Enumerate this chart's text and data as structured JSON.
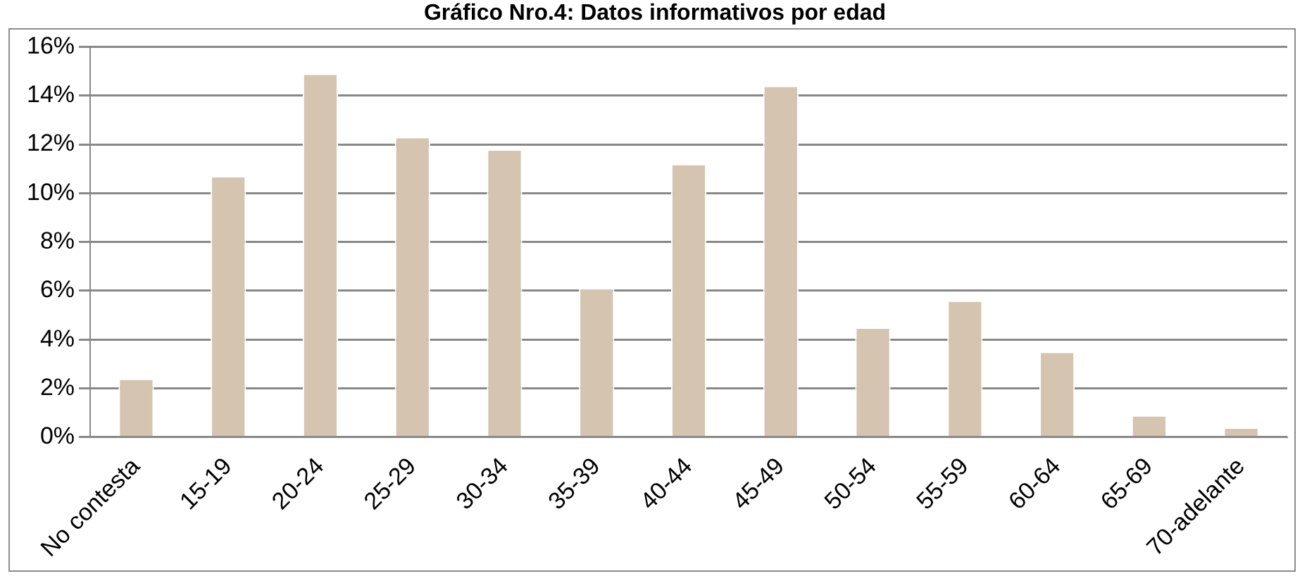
{
  "chart_data": {
    "type": "bar",
    "title": "Gráfico Nro.4: Datos informativos por edad",
    "categories": [
      "No contesta",
      "15-19",
      "20-24",
      "25-29",
      "30-34",
      "35-39",
      "40-44",
      "45-49",
      "50-54",
      "55-59",
      "60-64",
      "65-69",
      "70-adelante"
    ],
    "values": [
      2.4,
      10.7,
      14.9,
      12.3,
      11.8,
      6.1,
      11.2,
      14.4,
      4.5,
      5.6,
      3.5,
      0.9,
      0.4
    ],
    "color": "#d4c4b0",
    "ylim": [
      0,
      16
    ],
    "yticks": [
      {
        "value": 0,
        "label": "0%"
      },
      {
        "value": 2,
        "label": "2%"
      },
      {
        "value": 4,
        "label": "4%"
      },
      {
        "value": 6,
        "label": "6%"
      },
      {
        "value": 8,
        "label": "8%"
      },
      {
        "value": 10,
        "label": "10%"
      },
      {
        "value": 12,
        "label": "12%"
      },
      {
        "value": 14,
        "label": "14%"
      },
      {
        "value": 16,
        "label": "16%"
      }
    ],
    "grid": "y",
    "legend": false
  }
}
